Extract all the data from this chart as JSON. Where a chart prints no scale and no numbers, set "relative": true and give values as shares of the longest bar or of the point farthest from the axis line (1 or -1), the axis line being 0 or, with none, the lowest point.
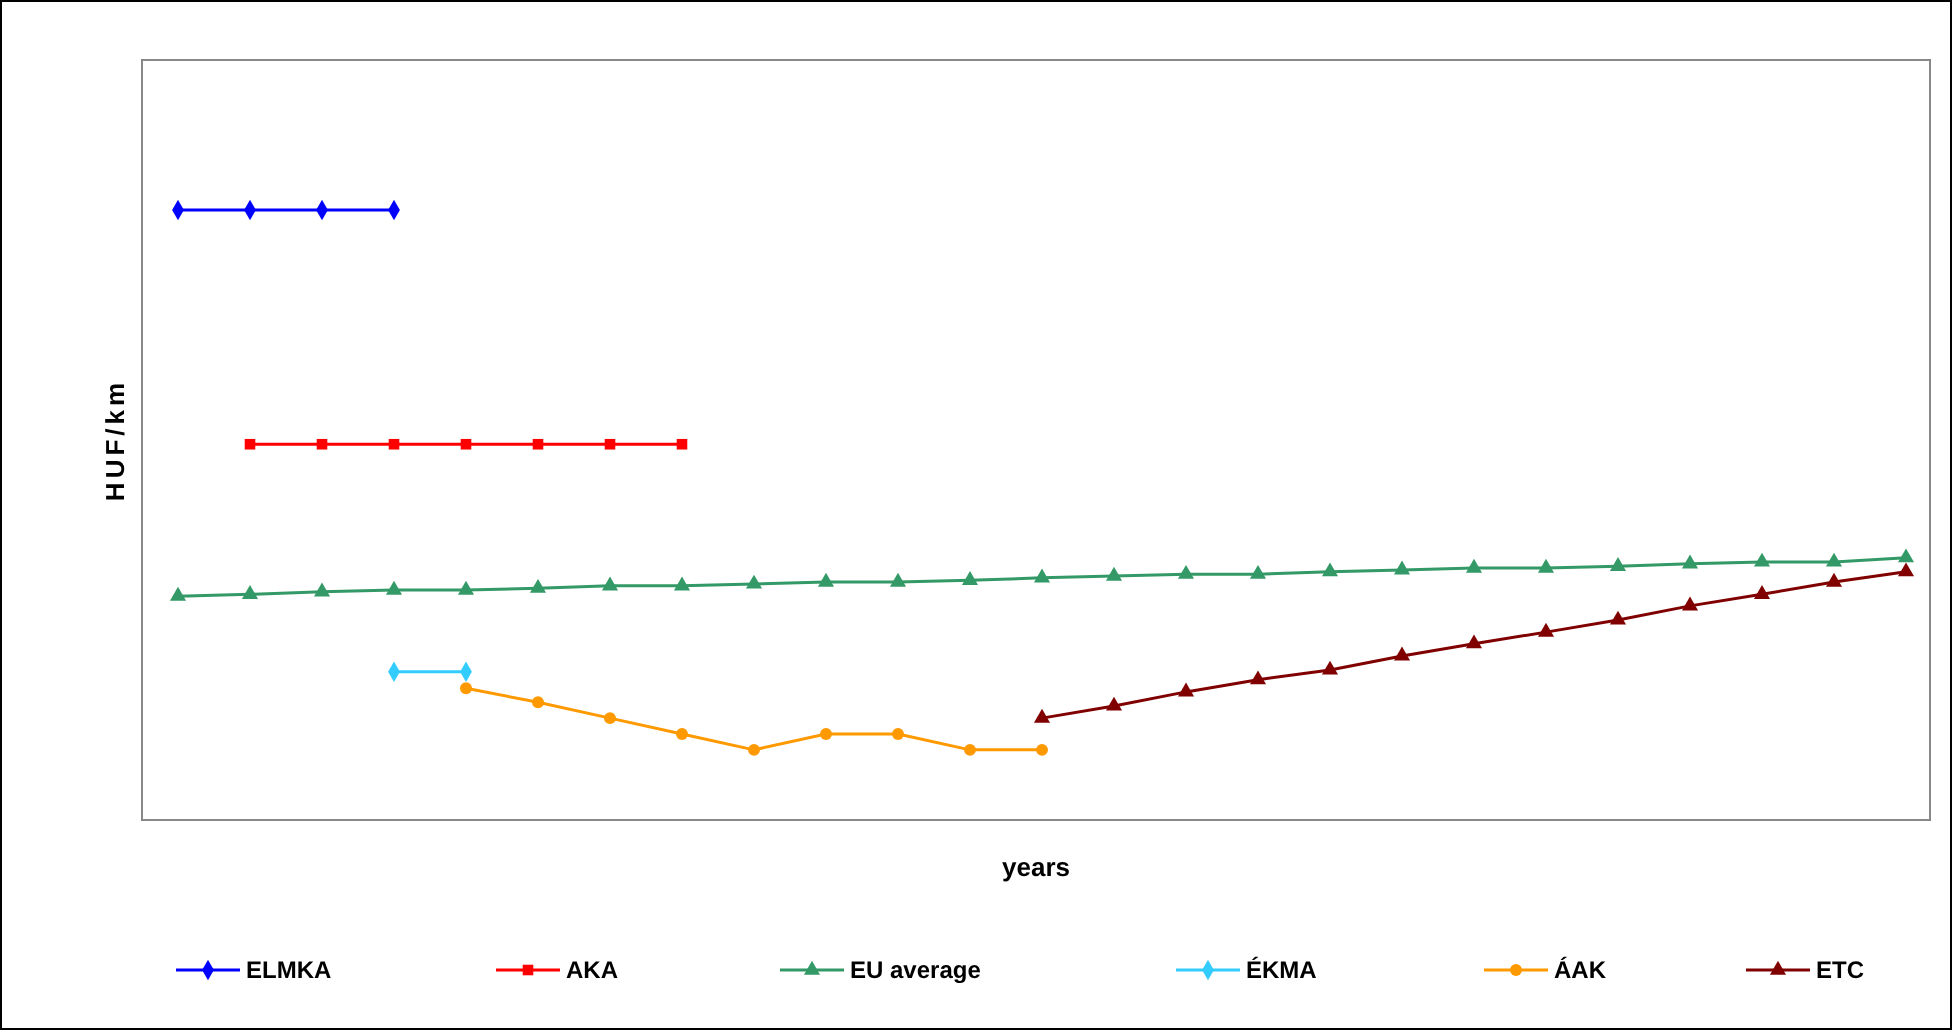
{
  "chart_data": {
    "type": "line",
    "relative": true,
    "xlabel": "years",
    "ylabel": "HUF/km",
    "legend": "bottom",
    "categories": [
      null,
      null,
      null,
      null,
      null,
      null,
      null,
      null,
      null,
      null,
      null,
      null,
      null,
      null,
      null,
      null,
      null,
      null,
      null,
      null,
      null,
      null,
      null,
      null,
      null
    ],
    "series": [
      {
        "name": "ELMKA",
        "color": "#0000ff",
        "marker": "diamond",
        "values": [
          1,
          1,
          1,
          1,
          null,
          null,
          null,
          null,
          null,
          null,
          null,
          null,
          null,
          null,
          null,
          null,
          null,
          null,
          null,
          null,
          null,
          null,
          null,
          null,
          null
        ]
      },
      {
        "name": "AKA",
        "color": "#ff0000",
        "marker": "square",
        "values": [
          null,
          0.616,
          0.616,
          0.616,
          0.616,
          0.616,
          0.616,
          0.616,
          null,
          null,
          null,
          null,
          null,
          null,
          null,
          null,
          null,
          null,
          null,
          null,
          null,
          null,
          null,
          null,
          null
        ]
      },
      {
        "name": "EU average",
        "color": "#339966",
        "marker": "triangle",
        "values": [
          0.367,
          0.37,
          0.374,
          0.377,
          0.377,
          0.38,
          0.384,
          0.384,
          0.387,
          0.39,
          0.39,
          0.393,
          0.397,
          0.4,
          0.403,
          0.403,
          0.407,
          0.41,
          0.413,
          0.413,
          0.416,
          0.42,
          0.423,
          0.423,
          0.43
        ]
      },
      {
        "name": "ÉKMA",
        "color": "#33ccff",
        "marker": "diamond",
        "values": [
          null,
          null,
          null,
          0.243,
          0.243,
          null,
          null,
          null,
          null,
          null,
          null,
          null,
          null,
          null,
          null,
          null,
          null,
          null,
          null,
          null,
          null,
          null,
          null,
          null,
          null
        ]
      },
      {
        "name": "ÁAK",
        "color": "#ff9900",
        "marker": "circle",
        "values": [
          null,
          null,
          null,
          null,
          0.216,
          0.193,
          0.167,
          0.141,
          0.115,
          0.141,
          0.141,
          0.115,
          0.115,
          null,
          null,
          null,
          null,
          null,
          null,
          null,
          null,
          null,
          null,
          null,
          null
        ]
      },
      {
        "name": "ETC",
        "color": "#800000",
        "marker": "triangle",
        "values": [
          null,
          null,
          null,
          null,
          null,
          null,
          null,
          null,
          null,
          null,
          null,
          null,
          0.167,
          0.187,
          0.21,
          0.23,
          0.246,
          0.269,
          0.289,
          0.308,
          0.328,
          0.351,
          0.37,
          0.39,
          0.407
        ]
      }
    ]
  }
}
